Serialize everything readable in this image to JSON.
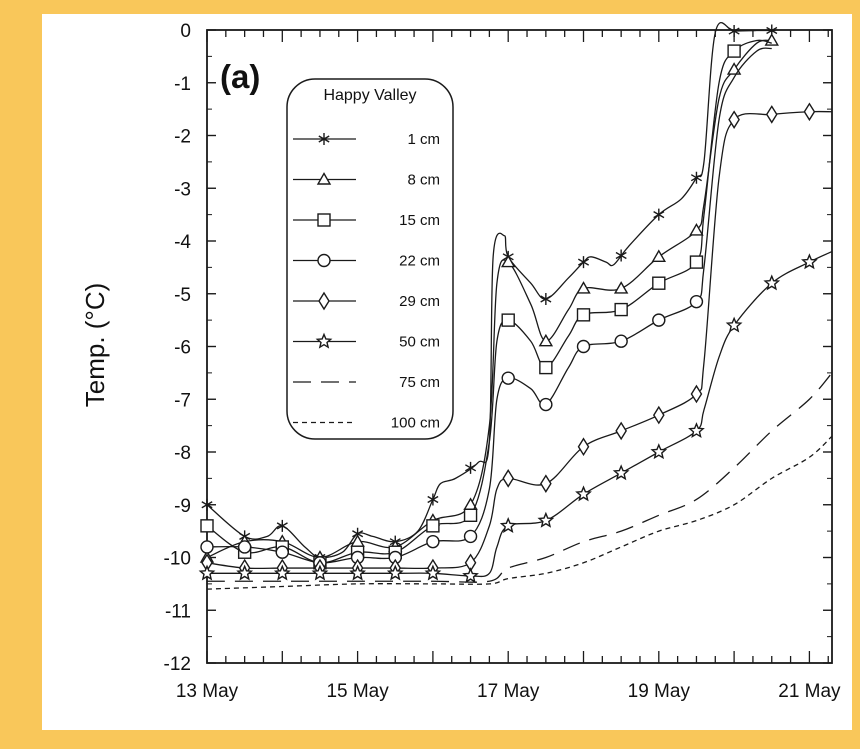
{
  "colors": {
    "frame": "#f9c75a",
    "background": "#ffffff",
    "ink": "#1a1a1a"
  },
  "chart_data": {
    "type": "line",
    "panel_label": "(a)",
    "title": "",
    "xlabel": "",
    "ylabel": "Temp. (°C)",
    "x_tick_labels": [
      {
        "x": 13,
        "label": "13 May"
      },
      {
        "x": 15,
        "label": "15 May"
      },
      {
        "x": 17,
        "label": "17 May"
      },
      {
        "x": 19,
        "label": "19 May"
      },
      {
        "x": 21,
        "label": "21 May"
      }
    ],
    "xlim": [
      13,
      21.3
    ],
    "ylim": [
      -12,
      0
    ],
    "y_ticks": [
      0,
      -1,
      -2,
      -3,
      -4,
      -5,
      -6,
      -7,
      -8,
      -9,
      -10,
      -11,
      -12
    ],
    "grid": false,
    "legend": {
      "title": "Happy Valley",
      "placement": "top-left"
    },
    "series": [
      {
        "name": "1 cm",
        "marker": "asterisk",
        "dash": "",
        "points": [
          [
            13.0,
            -9.0
          ],
          [
            13.5,
            -9.6
          ],
          [
            13.8,
            -9.6
          ],
          [
            14.0,
            -9.4
          ],
          [
            14.3,
            -9.8
          ],
          [
            14.5,
            -10.0
          ],
          [
            14.8,
            -9.9
          ],
          [
            15.0,
            -9.55
          ],
          [
            15.2,
            -9.6
          ],
          [
            15.5,
            -9.7
          ],
          [
            15.8,
            -9.5
          ],
          [
            16.0,
            -8.9
          ],
          [
            16.1,
            -8.6
          ],
          [
            16.3,
            -8.5
          ],
          [
            16.6,
            -8.2
          ],
          [
            16.75,
            -7.8
          ],
          [
            16.8,
            -4.3
          ],
          [
            16.95,
            -3.9
          ],
          [
            17.0,
            -4.3
          ],
          [
            17.3,
            -4.8
          ],
          [
            17.5,
            -5.1
          ],
          [
            17.8,
            -4.7
          ],
          [
            18.0,
            -4.4
          ],
          [
            18.1,
            -4.3
          ],
          [
            18.3,
            -4.4
          ],
          [
            18.4,
            -4.45
          ],
          [
            18.6,
            -4.1
          ],
          [
            19.0,
            -3.5
          ],
          [
            19.3,
            -3.2
          ],
          [
            19.5,
            -2.8
          ],
          [
            19.6,
            -2.5
          ],
          [
            19.75,
            -0.05
          ],
          [
            20.0,
            -0.02
          ],
          [
            20.3,
            -0.01
          ],
          [
            20.55,
            -0.01
          ]
        ],
        "marker_x": [
          13.0,
          13.5,
          14.0,
          14.5,
          15.0,
          15.5,
          16.0,
          16.5,
          17.0,
          17.5,
          18.0,
          18.5,
          19.0,
          19.5,
          20.0,
          20.5
        ]
      },
      {
        "name": "8 cm",
        "marker": "triangle",
        "dash": "",
        "points": [
          [
            13.0,
            -10.0
          ],
          [
            13.5,
            -9.7
          ],
          [
            14.0,
            -9.7
          ],
          [
            14.5,
            -10.0
          ],
          [
            15.0,
            -9.7
          ],
          [
            15.5,
            -9.8
          ],
          [
            16.0,
            -9.3
          ],
          [
            16.5,
            -9.0
          ],
          [
            16.75,
            -7.5
          ],
          [
            16.85,
            -4.8
          ],
          [
            17.0,
            -4.4
          ],
          [
            17.3,
            -5.2
          ],
          [
            17.5,
            -5.9
          ],
          [
            17.8,
            -5.3
          ],
          [
            18.0,
            -4.9
          ],
          [
            18.5,
            -4.9
          ],
          [
            19.0,
            -4.3
          ],
          [
            19.5,
            -3.8
          ],
          [
            19.6,
            -3.3
          ],
          [
            19.8,
            -1.3
          ],
          [
            20.0,
            -0.75
          ],
          [
            20.3,
            -0.25
          ],
          [
            20.5,
            -0.2
          ]
        ],
        "marker_x": [
          13.0,
          13.5,
          14.0,
          14.5,
          15.0,
          15.5,
          16.0,
          16.5,
          17.0,
          17.5,
          18.0,
          18.5,
          19.0,
          19.5,
          20.0,
          20.5
        ]
      },
      {
        "name": "15 cm",
        "marker": "square",
        "dash": "",
        "points": [
          [
            13.0,
            -9.4
          ],
          [
            13.5,
            -9.9
          ],
          [
            14.0,
            -9.8
          ],
          [
            14.5,
            -10.1
          ],
          [
            15.0,
            -9.9
          ],
          [
            15.5,
            -9.9
          ],
          [
            16.0,
            -9.4
          ],
          [
            16.5,
            -9.2
          ],
          [
            16.75,
            -7.8
          ],
          [
            16.85,
            -5.9
          ],
          [
            17.0,
            -5.5
          ],
          [
            17.3,
            -5.9
          ],
          [
            17.5,
            -6.4
          ],
          [
            17.8,
            -5.8
          ],
          [
            18.0,
            -5.4
          ],
          [
            18.5,
            -5.3
          ],
          [
            19.0,
            -4.8
          ],
          [
            19.5,
            -4.4
          ],
          [
            19.6,
            -3.5
          ],
          [
            19.8,
            -1.0
          ],
          [
            20.0,
            -0.4
          ],
          [
            20.3,
            -0.2
          ],
          [
            20.5,
            -0.25
          ]
        ],
        "marker_x": [
          13.0,
          13.5,
          14.0,
          14.5,
          15.0,
          15.5,
          16.0,
          16.5,
          17.0,
          17.5,
          18.0,
          18.5,
          19.0,
          19.5,
          20.0
        ]
      },
      {
        "name": "22 cm",
        "marker": "circle",
        "dash": "",
        "points": [
          [
            13.0,
            -9.8
          ],
          [
            13.5,
            -9.8
          ],
          [
            14.0,
            -9.9
          ],
          [
            14.5,
            -10.1
          ],
          [
            15.0,
            -10.0
          ],
          [
            15.5,
            -10.0
          ],
          [
            16.0,
            -9.7
          ],
          [
            16.5,
            -9.6
          ],
          [
            16.75,
            -8.7
          ],
          [
            16.85,
            -7.0
          ],
          [
            17.0,
            -6.6
          ],
          [
            17.3,
            -6.8
          ],
          [
            17.5,
            -7.1
          ],
          [
            17.8,
            -6.4
          ],
          [
            18.0,
            -6.0
          ],
          [
            18.5,
            -5.9
          ],
          [
            19.0,
            -5.5
          ],
          [
            19.5,
            -5.15
          ],
          [
            19.6,
            -4.5
          ],
          [
            19.8,
            -1.7
          ],
          [
            20.0,
            -0.9
          ],
          [
            20.3,
            -0.4
          ],
          [
            20.5,
            -0.35
          ]
        ],
        "marker_x": [
          13.0,
          13.5,
          14.0,
          14.5,
          15.0,
          15.5,
          16.0,
          16.5,
          17.0,
          17.5,
          18.0,
          18.5,
          19.0,
          19.5
        ]
      },
      {
        "name": "29 cm",
        "marker": "diamond",
        "dash": "",
        "points": [
          [
            13.0,
            -10.1
          ],
          [
            13.5,
            -10.2
          ],
          [
            14.0,
            -10.2
          ],
          [
            14.5,
            -10.2
          ],
          [
            15.0,
            -10.2
          ],
          [
            15.5,
            -10.2
          ],
          [
            16.0,
            -10.2
          ],
          [
            16.5,
            -10.1
          ],
          [
            16.75,
            -9.4
          ],
          [
            16.85,
            -8.7
          ],
          [
            17.0,
            -8.5
          ],
          [
            17.5,
            -8.6
          ],
          [
            18.0,
            -7.9
          ],
          [
            18.5,
            -7.6
          ],
          [
            19.0,
            -7.3
          ],
          [
            19.5,
            -6.9
          ],
          [
            19.6,
            -6.3
          ],
          [
            19.8,
            -2.8
          ],
          [
            20.0,
            -1.7
          ],
          [
            20.5,
            -1.6
          ],
          [
            21.0,
            -1.55
          ],
          [
            21.3,
            -1.55
          ]
        ],
        "marker_x": [
          13.0,
          13.5,
          14.0,
          14.5,
          15.0,
          15.5,
          16.0,
          16.5,
          17.0,
          17.5,
          18.0,
          18.5,
          19.0,
          19.5,
          20.0,
          20.5,
          21.0
        ]
      },
      {
        "name": "50 cm",
        "marker": "star",
        "dash": "",
        "points": [
          [
            13.0,
            -10.3
          ],
          [
            13.5,
            -10.3
          ],
          [
            14.0,
            -10.3
          ],
          [
            14.5,
            -10.3
          ],
          [
            15.0,
            -10.3
          ],
          [
            15.5,
            -10.3
          ],
          [
            16.0,
            -10.3
          ],
          [
            16.5,
            -10.35
          ],
          [
            16.75,
            -10.3
          ],
          [
            16.85,
            -9.8
          ],
          [
            17.0,
            -9.4
          ],
          [
            17.5,
            -9.3
          ],
          [
            18.0,
            -8.8
          ],
          [
            18.5,
            -8.4
          ],
          [
            19.0,
            -8.0
          ],
          [
            19.5,
            -7.6
          ],
          [
            19.6,
            -7.2
          ],
          [
            19.8,
            -6.2
          ],
          [
            20.0,
            -5.6
          ],
          [
            20.5,
            -4.8
          ],
          [
            21.0,
            -4.4
          ],
          [
            21.3,
            -4.2
          ]
        ],
        "marker_x": [
          13.0,
          13.5,
          14.0,
          14.5,
          15.0,
          15.5,
          16.0,
          16.5,
          17.0,
          17.5,
          18.0,
          18.5,
          19.0,
          19.5,
          20.0,
          20.5,
          21.0
        ]
      },
      {
        "name": "75 cm",
        "marker": "none",
        "dash": "18 10",
        "points": [
          [
            13.0,
            -10.45
          ],
          [
            14.0,
            -10.45
          ],
          [
            15.0,
            -10.45
          ],
          [
            16.0,
            -10.45
          ],
          [
            16.75,
            -10.45
          ],
          [
            17.0,
            -10.2
          ],
          [
            17.5,
            -10.0
          ],
          [
            18.0,
            -9.7
          ],
          [
            18.5,
            -9.5
          ],
          [
            19.0,
            -9.2
          ],
          [
            19.5,
            -8.9
          ],
          [
            20.0,
            -8.3
          ],
          [
            20.5,
            -7.6
          ],
          [
            21.0,
            -7.0
          ],
          [
            21.3,
            -6.5
          ]
        ],
        "marker_x": []
      },
      {
        "name": "100 cm",
        "marker": "none",
        "dash": "5 4",
        "points": [
          [
            13.0,
            -10.6
          ],
          [
            14.0,
            -10.55
          ],
          [
            15.0,
            -10.5
          ],
          [
            16.0,
            -10.5
          ],
          [
            16.75,
            -10.5
          ],
          [
            17.0,
            -10.4
          ],
          [
            17.5,
            -10.3
          ],
          [
            18.0,
            -10.1
          ],
          [
            18.5,
            -9.8
          ],
          [
            19.0,
            -9.5
          ],
          [
            19.5,
            -9.3
          ],
          [
            20.0,
            -9.0
          ],
          [
            20.5,
            -8.5
          ],
          [
            21.0,
            -8.1
          ],
          [
            21.3,
            -7.7
          ]
        ],
        "marker_x": []
      }
    ]
  }
}
